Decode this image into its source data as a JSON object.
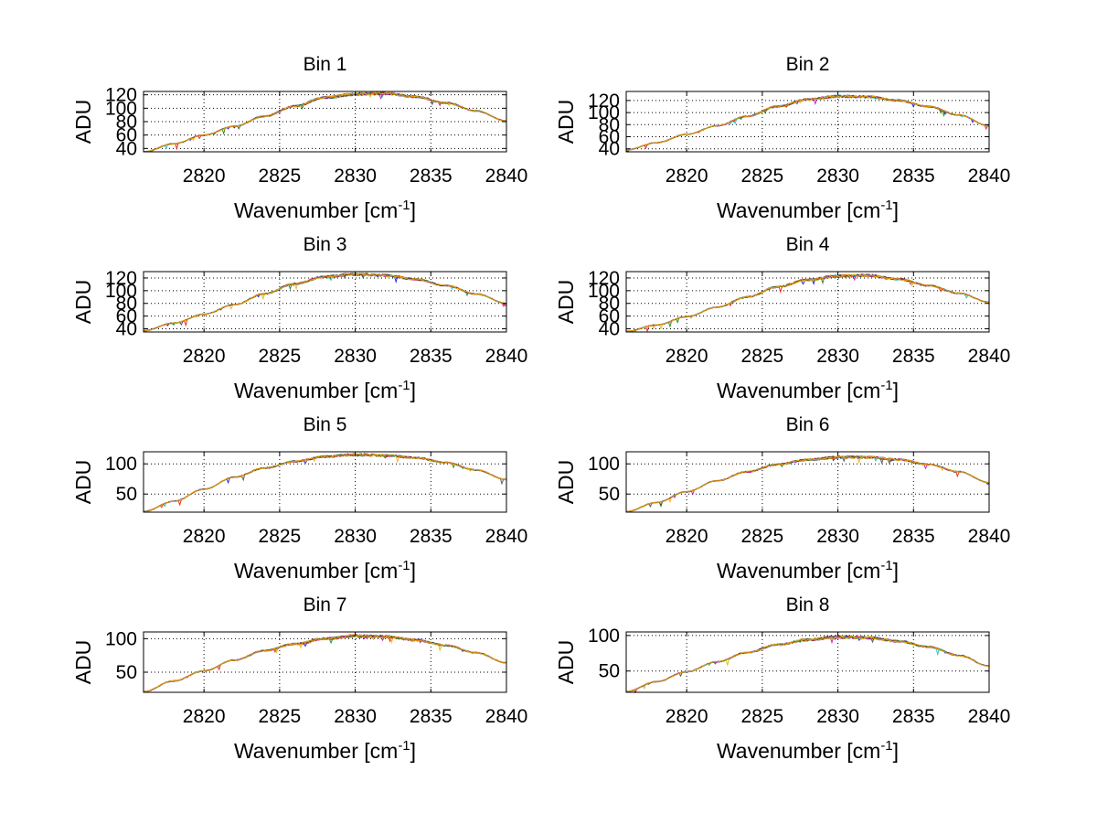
{
  "chart_data": [
    {
      "type": "line",
      "title": "Bin 1",
      "xlabel": "Wavenumber [cm",
      "xlabel_sup": "-1",
      "xlabel_close": "]",
      "ylabel": "ADU",
      "xlim": [
        2816,
        2840
      ],
      "ylim": [
        35,
        125
      ],
      "xticks": [
        2820,
        2825,
        2830,
        2835,
        2840
      ],
      "yticks": [
        40,
        60,
        80,
        100,
        120
      ],
      "x": [
        2816,
        2818,
        2820,
        2822,
        2824,
        2826,
        2828,
        2830,
        2832,
        2834,
        2836,
        2838,
        2840
      ],
      "values": [
        35,
        47,
        60,
        73,
        88,
        103,
        116,
        121,
        122,
        117,
        108,
        96,
        81
      ],
      "grid": true
    },
    {
      "type": "line",
      "title": "Bin 2",
      "xlabel": "Wavenumber [cm",
      "xlabel_sup": "-1",
      "xlabel_close": "]",
      "ylabel": "ADU",
      "xlim": [
        2816,
        2840
      ],
      "ylim": [
        35,
        135
      ],
      "xticks": [
        2820,
        2825,
        2830,
        2835,
        2840
      ],
      "yticks": [
        40,
        60,
        80,
        100,
        120
      ],
      "x": [
        2816,
        2818,
        2820,
        2822,
        2824,
        2826,
        2828,
        2830,
        2832,
        2834,
        2836,
        2838,
        2840
      ],
      "values": [
        38,
        50,
        64,
        78,
        94,
        110,
        122,
        127,
        126,
        120,
        110,
        96,
        78
      ],
      "grid": true
    },
    {
      "type": "line",
      "title": "Bin 3",
      "xlabel": "Wavenumber [cm",
      "xlabel_sup": "-1",
      "xlabel_close": "]",
      "ylabel": "ADU",
      "xlim": [
        2816,
        2840
      ],
      "ylim": [
        35,
        130
      ],
      "xticks": [
        2820,
        2825,
        2830,
        2835,
        2840
      ],
      "yticks": [
        40,
        60,
        80,
        100,
        120
      ],
      "x": [
        2816,
        2818,
        2820,
        2822,
        2824,
        2826,
        2828,
        2830,
        2832,
        2834,
        2836,
        2838,
        2840
      ],
      "values": [
        37,
        49,
        63,
        78,
        95,
        111,
        122,
        126,
        124,
        118,
        108,
        95,
        80
      ],
      "grid": true
    },
    {
      "type": "line",
      "title": "Bin 4",
      "xlabel": "Wavenumber [cm",
      "xlabel_sup": "-1",
      "xlabel_close": "]",
      "ylabel": "ADU",
      "xlim": [
        2816,
        2840
      ],
      "ylim": [
        35,
        130
      ],
      "xticks": [
        2820,
        2825,
        2830,
        2835,
        2840
      ],
      "yticks": [
        40,
        60,
        80,
        100,
        120
      ],
      "x": [
        2816,
        2818,
        2820,
        2822,
        2824,
        2826,
        2828,
        2830,
        2832,
        2834,
        2836,
        2838,
        2840
      ],
      "values": [
        36,
        46,
        59,
        74,
        90,
        106,
        117,
        123,
        124,
        118,
        108,
        96,
        82
      ],
      "grid": true
    },
    {
      "type": "line",
      "title": "Bin 5",
      "xlabel": "Wavenumber [cm",
      "xlabel_sup": "-1",
      "xlabel_close": "]",
      "ylabel": "ADU",
      "xlim": [
        2816,
        2840
      ],
      "ylim": [
        20,
        120
      ],
      "xticks": [
        2820,
        2825,
        2830,
        2835,
        2840
      ],
      "yticks": [
        50,
        100
      ],
      "x": [
        2816,
        2818,
        2820,
        2822,
        2824,
        2826,
        2828,
        2830,
        2832,
        2834,
        2836,
        2838,
        2840
      ],
      "values": [
        21,
        38,
        58,
        78,
        93,
        104,
        112,
        115,
        114,
        110,
        102,
        90,
        74
      ],
      "grid": true
    },
    {
      "type": "line",
      "title": "Bin 6",
      "xlabel": "Wavenumber [cm",
      "xlabel_sup": "-1",
      "xlabel_close": "]",
      "ylabel": "ADU",
      "xlim": [
        2816,
        2840
      ],
      "ylim": [
        20,
        120
      ],
      "xticks": [
        2820,
        2825,
        2830,
        2835,
        2840
      ],
      "yticks": [
        50,
        100
      ],
      "x": [
        2816,
        2818,
        2820,
        2822,
        2824,
        2826,
        2828,
        2830,
        2832,
        2834,
        2836,
        2838,
        2840
      ],
      "values": [
        21,
        36,
        54,
        72,
        87,
        99,
        107,
        111,
        111,
        107,
        99,
        87,
        69
      ],
      "grid": true
    },
    {
      "type": "line",
      "title": "Bin 7",
      "xlabel": "Wavenumber [cm",
      "xlabel_sup": "-1",
      "xlabel_close": "]",
      "ylabel": "ADU",
      "xlim": [
        2816,
        2840
      ],
      "ylim": [
        20,
        110
      ],
      "xticks": [
        2820,
        2825,
        2830,
        2835,
        2840
      ],
      "yticks": [
        50,
        100
      ],
      "x": [
        2816,
        2818,
        2820,
        2822,
        2824,
        2826,
        2828,
        2830,
        2832,
        2834,
        2836,
        2838,
        2840
      ],
      "values": [
        21,
        37,
        52,
        68,
        82,
        92,
        100,
        104,
        103,
        98,
        90,
        79,
        64
      ],
      "grid": true
    },
    {
      "type": "line",
      "title": "Bin 8",
      "xlabel": "Wavenumber [cm",
      "xlabel_sup": "-1",
      "xlabel_close": "]",
      "ylabel": "ADU",
      "xlim": [
        2816,
        2840
      ],
      "ylim": [
        20,
        105
      ],
      "xticks": [
        2820,
        2825,
        2830,
        2835,
        2840
      ],
      "yticks": [
        50,
        100
      ],
      "x": [
        2816,
        2818,
        2820,
        2822,
        2824,
        2826,
        2828,
        2830,
        2832,
        2834,
        2836,
        2838,
        2840
      ],
      "values": [
        21,
        35,
        49,
        63,
        76,
        87,
        94,
        98,
        97,
        92,
        84,
        72,
        57
      ],
      "grid": true
    }
  ],
  "series_colors": [
    "#0000ff",
    "#008000",
    "#ff0000",
    "#00bfbf",
    "#bf00bf",
    "#bfbf00",
    "#404040",
    "#ffa500"
  ],
  "styles": {
    "axis_color": "#000000",
    "grid_color": "#000000",
    "background": "#ffffff"
  }
}
